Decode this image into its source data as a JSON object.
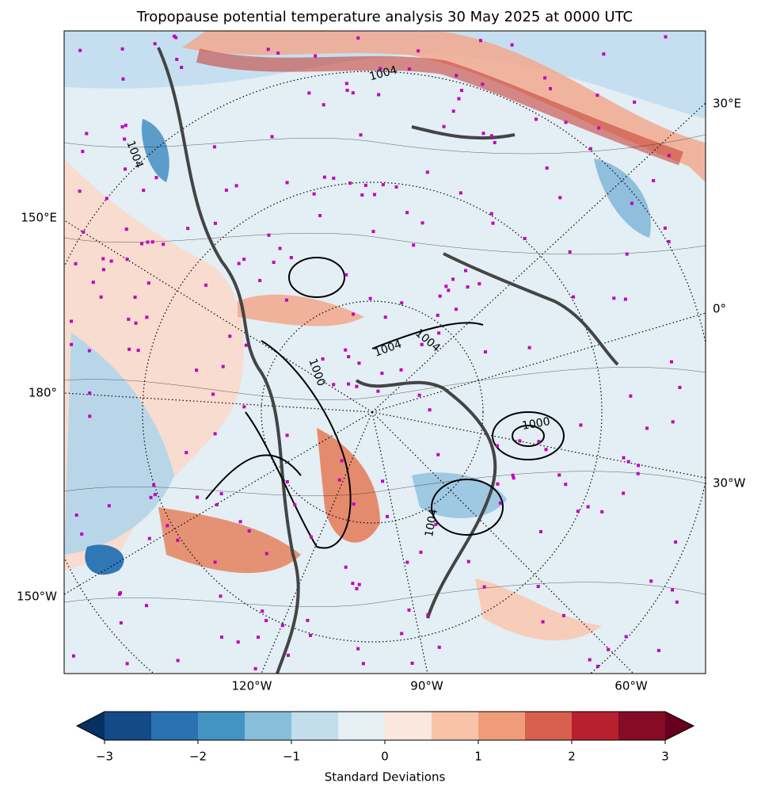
{
  "title": "Tropopause potential temperature analysis 30 May 2025 at 0000 UTC",
  "map": {
    "longitude_labels": [
      "30°E",
      "150°E",
      "0°",
      "180°",
      "30°W",
      "150°W",
      "120°W",
      "90°W",
      "60°W"
    ],
    "contour_labels": [
      "1004",
      "1004",
      "1004",
      "1004",
      "1000",
      "1000",
      "1004"
    ]
  },
  "colorbar": {
    "label": "Standard Deviations",
    "range": [
      -3,
      3
    ],
    "ticks": [
      {
        "value": -3,
        "label": "−3"
      },
      {
        "value": -2,
        "label": "−2"
      },
      {
        "value": -1,
        "label": "−1"
      },
      0,
      1,
      2,
      3
    ],
    "colors": [
      "#134b87",
      "#2a71b2",
      "#4393c3",
      "#87beda",
      "#c2ddec",
      "#e6eff4",
      "#fae7dd",
      "#f8c3a8",
      "#f09c7b",
      "#d6604d",
      "#b6202f",
      "#860b25"
    ],
    "under_color": "#053061",
    "over_color": "#67001f"
  }
}
